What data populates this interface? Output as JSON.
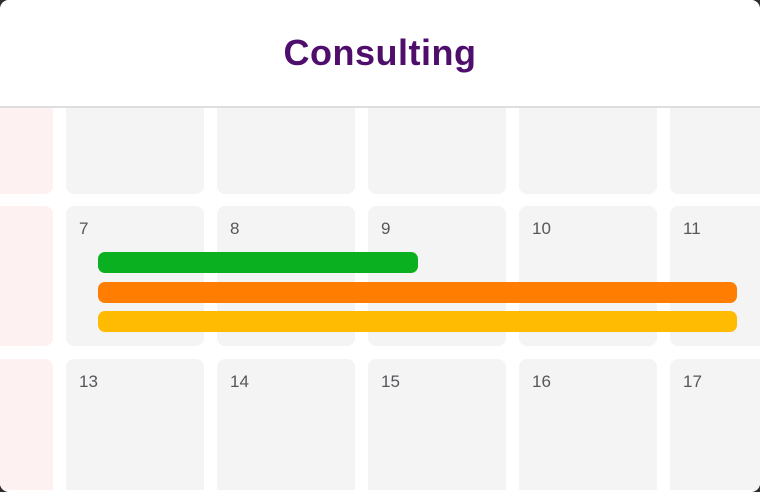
{
  "title": "Consulting",
  "theme": {
    "title_color": "#4F0D6C",
    "header_bg": "#ffffff",
    "divider_color": "#dedede",
    "cell_bg": "#f4f4f4",
    "weekend_cell_bg": "#fdf1f1",
    "date_text_color": "#56565b",
    "grid_gap_color": "#ffffff",
    "behind_page_color": "#2e2e2e"
  },
  "calendar": {
    "weeks": [
      {
        "days": [
          "",
          "",
          "",
          "",
          "",
          ""
        ]
      },
      {
        "days": [
          "",
          "7",
          "8",
          "9",
          "10",
          "11"
        ]
      },
      {
        "days": [
          "",
          "13",
          "14",
          "15",
          "16",
          "17"
        ]
      }
    ],
    "events": [
      {
        "id": "green-event",
        "color": "#0AB020",
        "start_day": "7",
        "end_day": "9"
      },
      {
        "id": "orange-event",
        "color": "#FF7D01",
        "start_day": "7",
        "end_day": "11"
      },
      {
        "id": "yellow-event",
        "color": "#FFBB02",
        "start_day": "7",
        "end_day": "11"
      }
    ]
  }
}
